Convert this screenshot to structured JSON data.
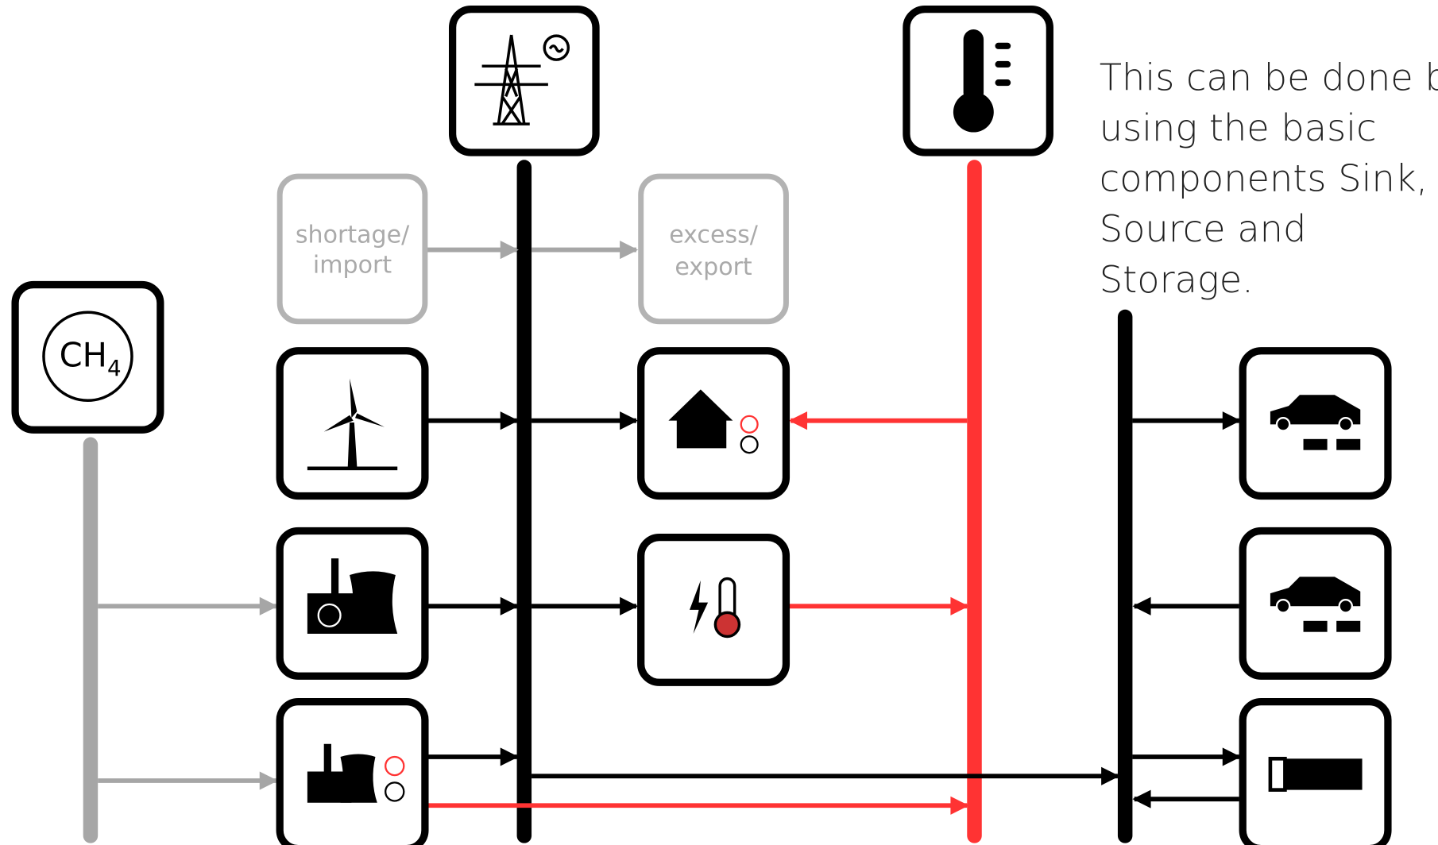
{
  "note": {
    "lines": [
      "This can be done by",
      "using the basic",
      "components Sink,",
      "Source and",
      "Storage."
    ]
  },
  "nodes": [
    {
      "id": "shortage",
      "lines": [
        "shortage/",
        "import"
      ]
    },
    {
      "id": "excess",
      "lines": [
        "excess/",
        "export"
      ]
    },
    {
      "id": "gas",
      "label": "CH",
      "subscript": "4"
    }
  ]
}
